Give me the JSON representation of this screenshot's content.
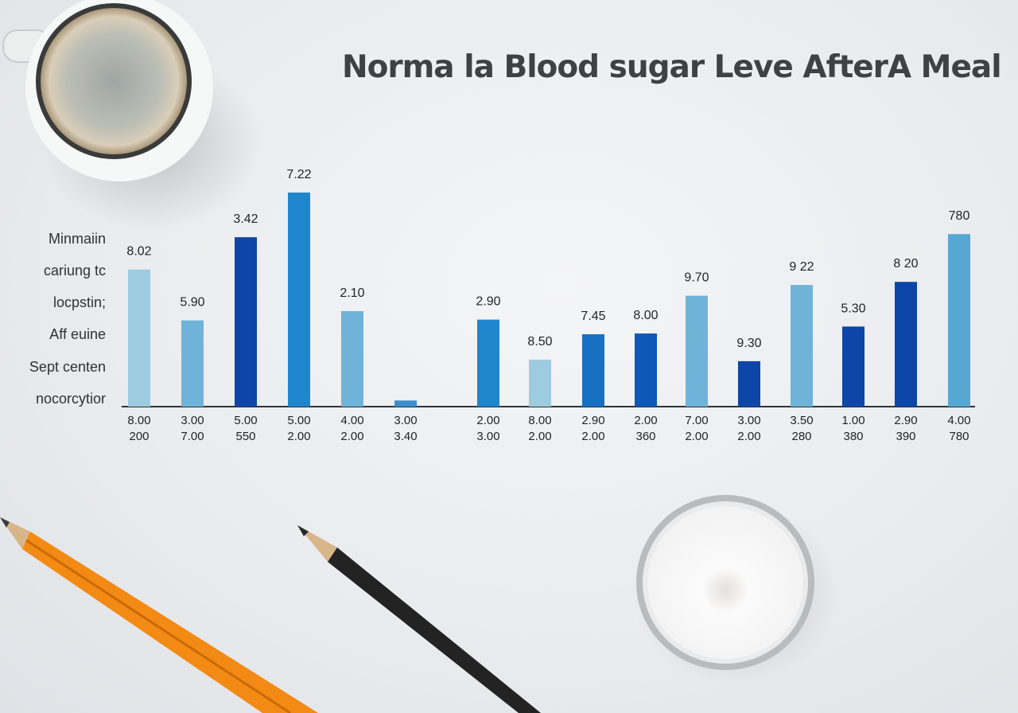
{
  "chart_data": {
    "type": "bar",
    "title": "Norma la Blood sugar Leve AfterA Meal",
    "row_labels": [
      "Minmaiin",
      "cariung tc",
      "locpstin;",
      "Aff euine",
      "Sept centen",
      "nocorcytior"
    ],
    "ylim": [
      0,
      310
    ],
    "bars": [
      {
        "value": 178,
        "label": "8.02",
        "tick1": "8.00",
        "tick2": "200",
        "color": "#9dcbe0"
      },
      {
        "value": 112,
        "label": "5.90",
        "tick1": "3.00",
        "tick2": "7.00",
        "color": "#6fb4d8"
      },
      {
        "value": 220,
        "label": "3.42",
        "tick1": "5.00",
        "tick2": "550",
        "color": "#0e46a8"
      },
      {
        "value": 278,
        "label": "7.22",
        "tick1": "5.00",
        "tick2": "2.00",
        "color": "#1f86cc"
      },
      {
        "value": 124,
        "label": "2.10",
        "tick1": "4.00",
        "tick2": "2.00",
        "color": "#6fb4d8"
      },
      {
        "value": 8,
        "label": "",
        "tick1": "3.00",
        "tick2": "3.40",
        "color": "#3c8fcc"
      },
      {
        "value": 113,
        "label": "2.90",
        "tick1": "2.00",
        "tick2": "3.00",
        "color": "#1f86cc"
      },
      {
        "value": 61,
        "label": "8.50",
        "tick1": "8.00",
        "tick2": "2.00",
        "color": "#9dcbe0"
      },
      {
        "value": 94,
        "label": "7.45",
        "tick1": "2.90",
        "tick2": "2.00",
        "color": "#1770c2"
      },
      {
        "value": 95,
        "label": "8.00",
        "tick1": "2.00",
        "tick2": "360",
        "color": "#0e58b8"
      },
      {
        "value": 144,
        "label": "9.70",
        "tick1": "7.00",
        "tick2": "2.00",
        "color": "#6fb4d8"
      },
      {
        "value": 59,
        "label": "9.30",
        "tick1": "3.00",
        "tick2": "2.00",
        "color": "#0e46a8"
      },
      {
        "value": 158,
        "label": "9 22",
        "tick1": "3.50",
        "tick2": "280",
        "color": "#6fb4d8"
      },
      {
        "value": 104,
        "label": "5.30",
        "tick1": "1.00",
        "tick2": "380",
        "color": "#0e46a8"
      },
      {
        "value": 162,
        "label": "8 20",
        "tick1": "2.90",
        "tick2": "390",
        "color": "#0e46a8"
      },
      {
        "value": 224,
        "label": "780",
        "tick1": "4.00",
        "tick2": "780",
        "color": "#56a7d2"
      }
    ]
  }
}
